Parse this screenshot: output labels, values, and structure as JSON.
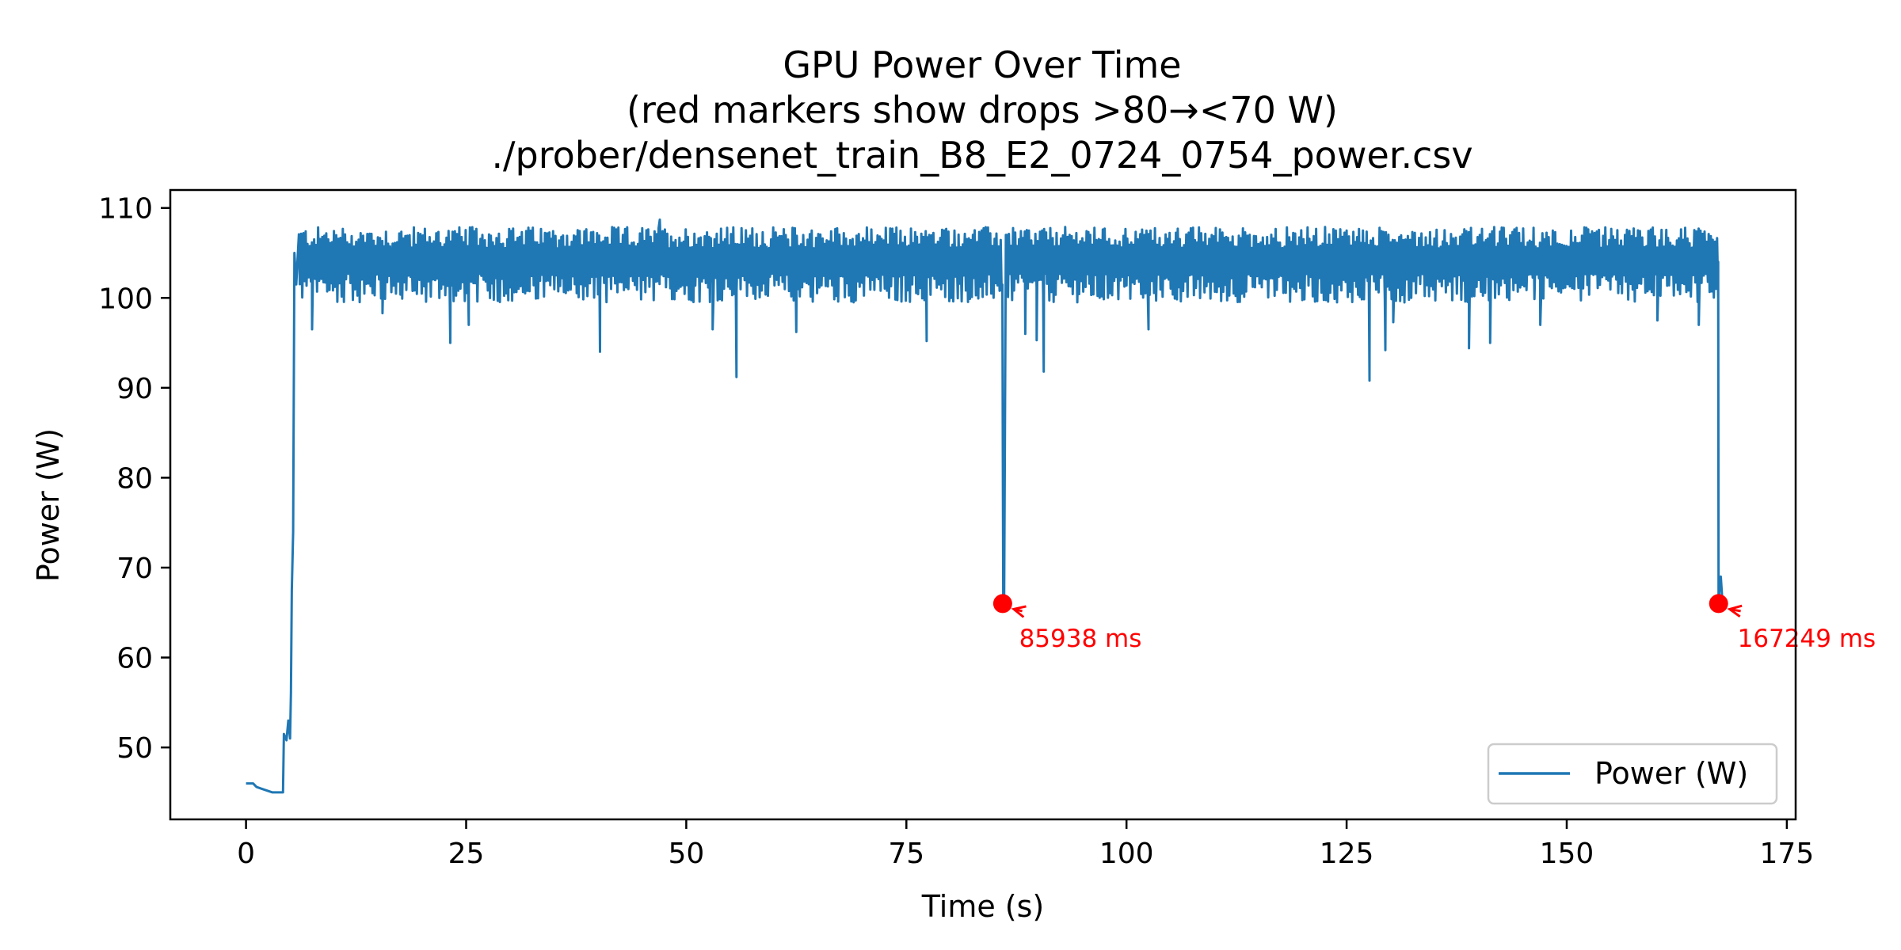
{
  "chart_data": {
    "type": "line",
    "title": "GPU Power Over Time",
    "subtitle": "(red markers show drops >80→<70 W)",
    "subtitle2": "./prober/densenet_train_B8_E2_0724_0754_power.csv",
    "xlabel": "Time (s)",
    "ylabel": "Power (W)",
    "xlim": [
      -8.6,
      176
    ],
    "ylim": [
      42,
      112
    ],
    "xticks": [
      0,
      25,
      50,
      75,
      100,
      125,
      150,
      175
    ],
    "xtick_labels": [
      "0",
      "25",
      "50",
      "75",
      "100",
      "125",
      "150",
      "175"
    ],
    "yticks": [
      50,
      60,
      70,
      80,
      90,
      100,
      110
    ],
    "ytick_labels": [
      "50",
      "60",
      "70",
      "80",
      "90",
      "100",
      "110"
    ],
    "grid": false,
    "legend": {
      "placement": "lower-right",
      "entries": [
        "Power (W)"
      ]
    },
    "colors": {
      "series": "#1f77b4",
      "marker": "#ff0000"
    },
    "series": [
      {
        "name": "Power (W)",
        "x": [
          0,
          0.8,
          1.2,
          1.8,
          2.4,
          3.0,
          3.6,
          4.2,
          4.3,
          4.6,
          4.8,
          5.0,
          5.1,
          5.2,
          5.35,
          5.5,
          5.7,
          6.0
        ],
        "y": [
          46.0,
          46.0,
          45.6,
          45.4,
          45.2,
          45.0,
          45.0,
          45.0,
          51.5,
          50.8,
          53.0,
          51.0,
          56.0,
          67.5,
          74.0,
          105.0,
          101.5,
          107.0
        ],
        "steady": {
          "x_start": 6.0,
          "x_end": 167.2,
          "low": 99.5,
          "high": 107.8,
          "dips": [
            {
              "x": 7.5,
              "y": 96.5
            },
            {
              "x": 15.5,
              "y": 98.3
            },
            {
              "x": 23.2,
              "y": 95.0
            },
            {
              "x": 25.3,
              "y": 97.0
            },
            {
              "x": 40.2,
              "y": 94.0
            },
            {
              "x": 55.7,
              "y": 91.2
            },
            {
              "x": 53.0,
              "y": 96.5
            },
            {
              "x": 62.5,
              "y": 96.2
            },
            {
              "x": 77.3,
              "y": 95.2
            },
            {
              "x": 88.5,
              "y": 96.0
            },
            {
              "x": 89.8,
              "y": 95.3
            },
            {
              "x": 90.6,
              "y": 91.8
            },
            {
              "x": 102.5,
              "y": 96.5
            },
            {
              "x": 127.6,
              "y": 90.8
            },
            {
              "x": 129.4,
              "y": 94.2
            },
            {
              "x": 130.3,
              "y": 97.3
            },
            {
              "x": 138.9,
              "y": 94.4
            },
            {
              "x": 141.3,
              "y": 95.0
            },
            {
              "x": 147.0,
              "y": 97.0
            },
            {
              "x": 160.3,
              "y": 97.5
            },
            {
              "x": 165.0,
              "y": 97.0
            }
          ],
          "peak": {
            "x": 47.0,
            "y": 108.7
          }
        },
        "drops": [
          {
            "x": 85.9,
            "points": [
              [
                85.9,
                101.5
              ],
              [
                85.95,
                84.0
              ],
              [
                86.0,
                66.0
              ],
              [
                86.1,
                66.0
              ],
              [
                86.3,
                107.0
              ]
            ]
          },
          {
            "x": 167.2,
            "points": [
              [
                167.2,
                104.0
              ],
              [
                167.25,
                66.0
              ],
              [
                167.4,
                68.5
              ],
              [
                167.5,
                69.0
              ],
              [
                167.7,
                66.0
              ],
              [
                167.9,
                66.0
              ]
            ]
          }
        ]
      }
    ],
    "markers": [
      {
        "x": 85.938,
        "y": 66.0,
        "label": "85938 ms",
        "text_x": 87.8,
        "text_y": 61.2
      },
      {
        "x": 167.249,
        "y": 66.0,
        "label": "167249 ms",
        "text_x": 169.4,
        "text_y": 61.2
      }
    ]
  }
}
